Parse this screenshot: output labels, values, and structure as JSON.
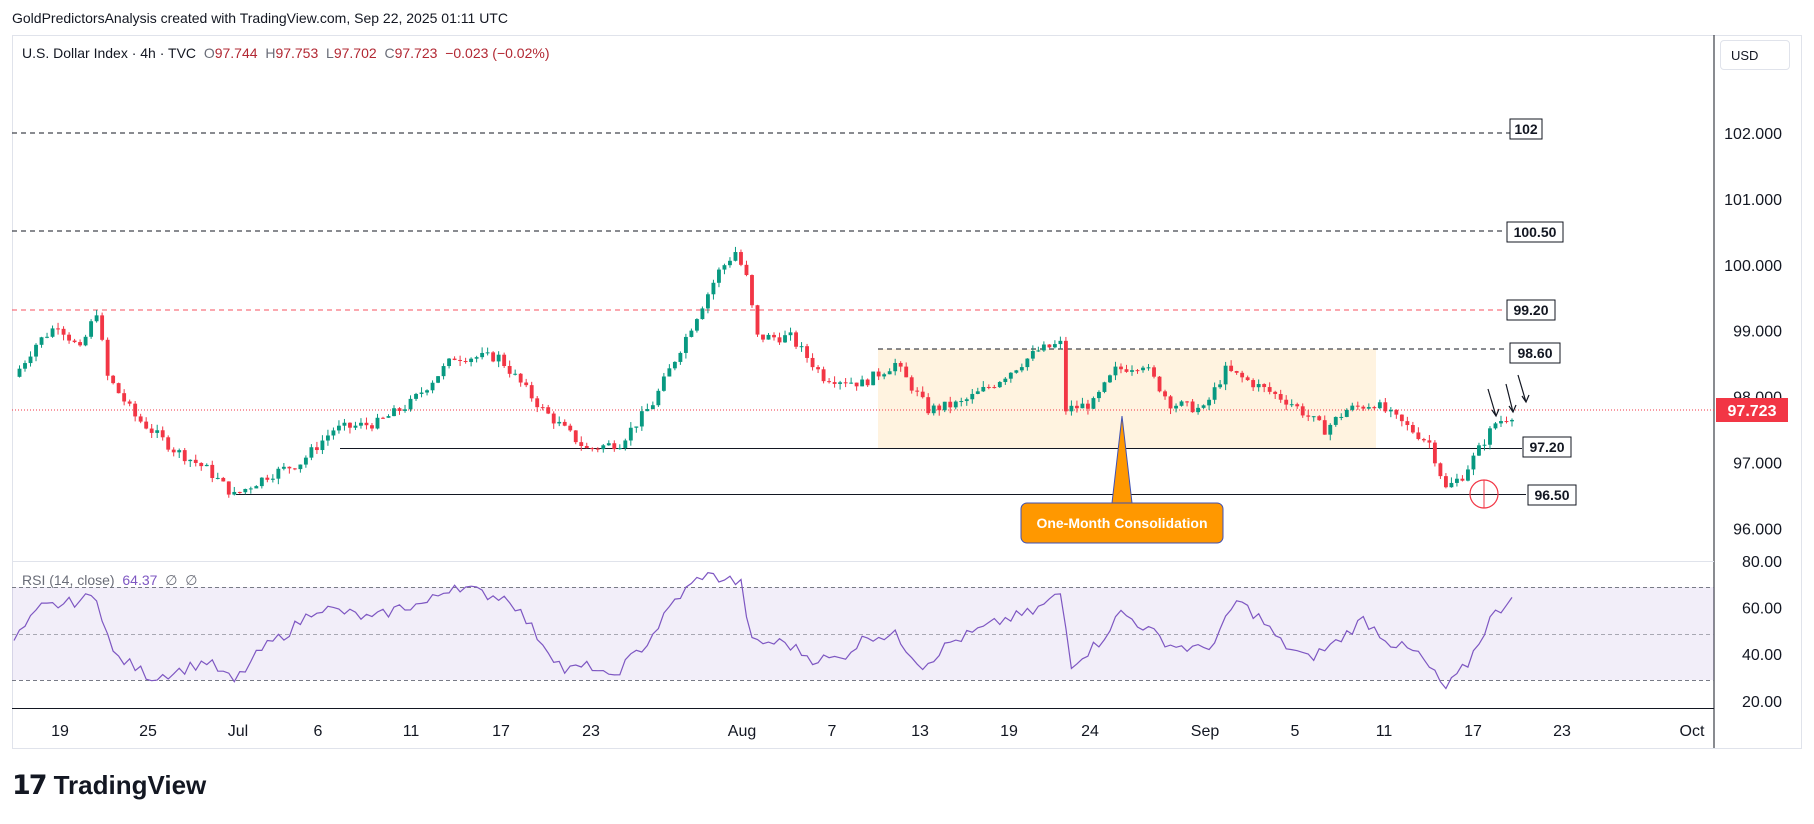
{
  "header": {
    "text": "GoldPredictorsAnalysis created with TradingView.com, Sep 22, 2025 01:11 UTC"
  },
  "legend": {
    "symbol": "U.S. Dollar Index · 4h · TVC",
    "o_label": "O",
    "o": "97.744",
    "h_label": "H",
    "h": "97.753",
    "l_label": "L",
    "l": "97.702",
    "c_label": "C",
    "c": "97.723",
    "change": "−0.023 (−0.02%)"
  },
  "currency": "USD",
  "rsi_legend": {
    "label": "RSI (14, close)",
    "value": "64.37",
    "extra1": "∅",
    "extra2": "∅"
  },
  "brand": {
    "logo_glyph": "17",
    "name": "TradingView"
  },
  "colors": {
    "up": "#089981",
    "down": "#f23645",
    "rsi_line": "#7e57c2",
    "rsi_band": "#7e57c21a",
    "box_fill": "#fff3e0",
    "callout": "#ff9800",
    "last_price": "#f23645"
  },
  "chart_data": [
    {
      "type": "candlestick",
      "title": "U.S. Dollar Index · 4h · TVC",
      "ylim": [
        95.4,
        103.2
      ],
      "y_ticks": [
        "102.000",
        "101.000",
        "100.000",
        "99.000",
        "98.000",
        "97.000",
        "96.000"
      ],
      "x_ticks": [
        "19",
        "25",
        "Jul",
        "6",
        "11",
        "17",
        "23",
        "Aug",
        "7",
        "13",
        "19",
        "24",
        "Sep",
        "5",
        "11",
        "17",
        "23",
        "Oct"
      ],
      "waypoints": [
        {
          "t": 0,
          "p": 98.3
        },
        {
          "t": 4,
          "p": 98.8
        },
        {
          "t": 8,
          "p": 99.1
        },
        {
          "t": 12,
          "p": 98.7
        },
        {
          "t": 15,
          "p": 99.3
        },
        {
          "t": 17,
          "p": 98.3
        },
        {
          "t": 22,
          "p": 97.7
        },
        {
          "t": 29,
          "p": 97.2
        },
        {
          "t": 35,
          "p": 96.9
        },
        {
          "t": 40,
          "p": 96.5
        },
        {
          "t": 46,
          "p": 96.8
        },
        {
          "t": 52,
          "p": 97.0
        },
        {
          "t": 58,
          "p": 97.5
        },
        {
          "t": 66,
          "p": 97.6
        },
        {
          "t": 72,
          "p": 97.9
        },
        {
          "t": 80,
          "p": 98.6
        },
        {
          "t": 88,
          "p": 98.6
        },
        {
          "t": 96,
          "p": 97.8
        },
        {
          "t": 104,
          "p": 97.2
        },
        {
          "t": 110,
          "p": 97.3
        },
        {
          "t": 116,
          "p": 97.9
        },
        {
          "t": 122,
          "p": 98.9
        },
        {
          "t": 128,
          "p": 99.9
        },
        {
          "t": 131,
          "p": 100.2
        },
        {
          "t": 133,
          "p": 99.8
        },
        {
          "t": 135,
          "p": 98.9
        },
        {
          "t": 141,
          "p": 98.9
        },
        {
          "t": 147,
          "p": 98.3
        },
        {
          "t": 154,
          "p": 98.2
        },
        {
          "t": 160,
          "p": 98.5
        },
        {
          "t": 166,
          "p": 97.8
        },
        {
          "t": 172,
          "p": 97.9
        },
        {
          "t": 178,
          "p": 98.2
        },
        {
          "t": 186,
          "p": 98.7
        },
        {
          "t": 190,
          "p": 98.8
        },
        {
          "t": 191,
          "p": 97.8
        },
        {
          "t": 196,
          "p": 97.9
        },
        {
          "t": 200,
          "p": 98.4
        },
        {
          "t": 205,
          "p": 98.5
        },
        {
          "t": 210,
          "p": 97.9
        },
        {
          "t": 216,
          "p": 97.8
        },
        {
          "t": 220,
          "p": 98.4
        },
        {
          "t": 225,
          "p": 98.2
        },
        {
          "t": 232,
          "p": 97.9
        },
        {
          "t": 238,
          "p": 97.5
        },
        {
          "t": 242,
          "p": 97.8
        },
        {
          "t": 247,
          "p": 97.9
        },
        {
          "t": 252,
          "p": 97.6
        },
        {
          "t": 257,
          "p": 97.3
        },
        {
          "t": 260,
          "p": 96.6
        },
        {
          "t": 263,
          "p": 96.8
        },
        {
          "t": 266,
          "p": 97.2
        },
        {
          "t": 269,
          "p": 97.6
        },
        {
          "t": 272,
          "p": 97.723
        }
      ],
      "last_price": {
        "label": "97.723",
        "value": 97.723
      }
    },
    {
      "type": "line",
      "title": "RSI (14, close)",
      "ylim": [
        15,
        82
      ],
      "y_ticks": [
        "80.00",
        "60.00",
        "40.00",
        "20.00"
      ],
      "band": [
        30,
        70
      ],
      "waypoints": [
        {
          "t": 0,
          "p": 46
        },
        {
          "t": 5,
          "p": 60
        },
        {
          "t": 10,
          "p": 62
        },
        {
          "t": 15,
          "p": 65
        },
        {
          "t": 18,
          "p": 40
        },
        {
          "t": 25,
          "p": 30
        },
        {
          "t": 30,
          "p": 33
        },
        {
          "t": 35,
          "p": 37
        },
        {
          "t": 40,
          "p": 28
        },
        {
          "t": 45,
          "p": 42
        },
        {
          "t": 50,
          "p": 50
        },
        {
          "t": 55,
          "p": 60
        },
        {
          "t": 60,
          "p": 58
        },
        {
          "t": 65,
          "p": 55
        },
        {
          "t": 70,
          "p": 60
        },
        {
          "t": 75,
          "p": 62
        },
        {
          "t": 80,
          "p": 70
        },
        {
          "t": 85,
          "p": 66
        },
        {
          "t": 90,
          "p": 64
        },
        {
          "t": 95,
          "p": 48
        },
        {
          "t": 100,
          "p": 33
        },
        {
          "t": 105,
          "p": 35
        },
        {
          "t": 108,
          "p": 29
        },
        {
          "t": 115,
          "p": 45
        },
        {
          "t": 120,
          "p": 63
        },
        {
          "t": 125,
          "p": 74
        },
        {
          "t": 130,
          "p": 72
        },
        {
          "t": 132,
          "p": 70
        },
        {
          "t": 134,
          "p": 45
        },
        {
          "t": 140,
          "p": 45
        },
        {
          "t": 145,
          "p": 38
        },
        {
          "t": 150,
          "p": 38
        },
        {
          "t": 155,
          "p": 48
        },
        {
          "t": 160,
          "p": 48
        },
        {
          "t": 165,
          "p": 35
        },
        {
          "t": 170,
          "p": 45
        },
        {
          "t": 175,
          "p": 50
        },
        {
          "t": 180,
          "p": 55
        },
        {
          "t": 185,
          "p": 58
        },
        {
          "t": 190,
          "p": 66
        },
        {
          "t": 192,
          "p": 36
        },
        {
          "t": 197,
          "p": 45
        },
        {
          "t": 201,
          "p": 58
        },
        {
          "t": 205,
          "p": 52
        },
        {
          "t": 210,
          "p": 44
        },
        {
          "t": 215,
          "p": 42
        },
        {
          "t": 218,
          "p": 45
        },
        {
          "t": 222,
          "p": 63
        },
        {
          "t": 226,
          "p": 56
        },
        {
          "t": 230,
          "p": 45
        },
        {
          "t": 235,
          "p": 38
        },
        {
          "t": 240,
          "p": 45
        },
        {
          "t": 245,
          "p": 55
        },
        {
          "t": 250,
          "p": 45
        },
        {
          "t": 255,
          "p": 40
        },
        {
          "t": 260,
          "p": 25
        },
        {
          "t": 264,
          "p": 36
        },
        {
          "t": 268,
          "p": 55
        },
        {
          "t": 272,
          "p": 64.37
        }
      ]
    }
  ],
  "annotations": {
    "hline_102": "102",
    "hline_100_50": "100.50",
    "hline_99_20": "99.20",
    "hline_98_60": "98.60",
    "hline_97_20": "97.20",
    "hline_96_50": "96.50",
    "callout": "One-Month Consolidation"
  }
}
